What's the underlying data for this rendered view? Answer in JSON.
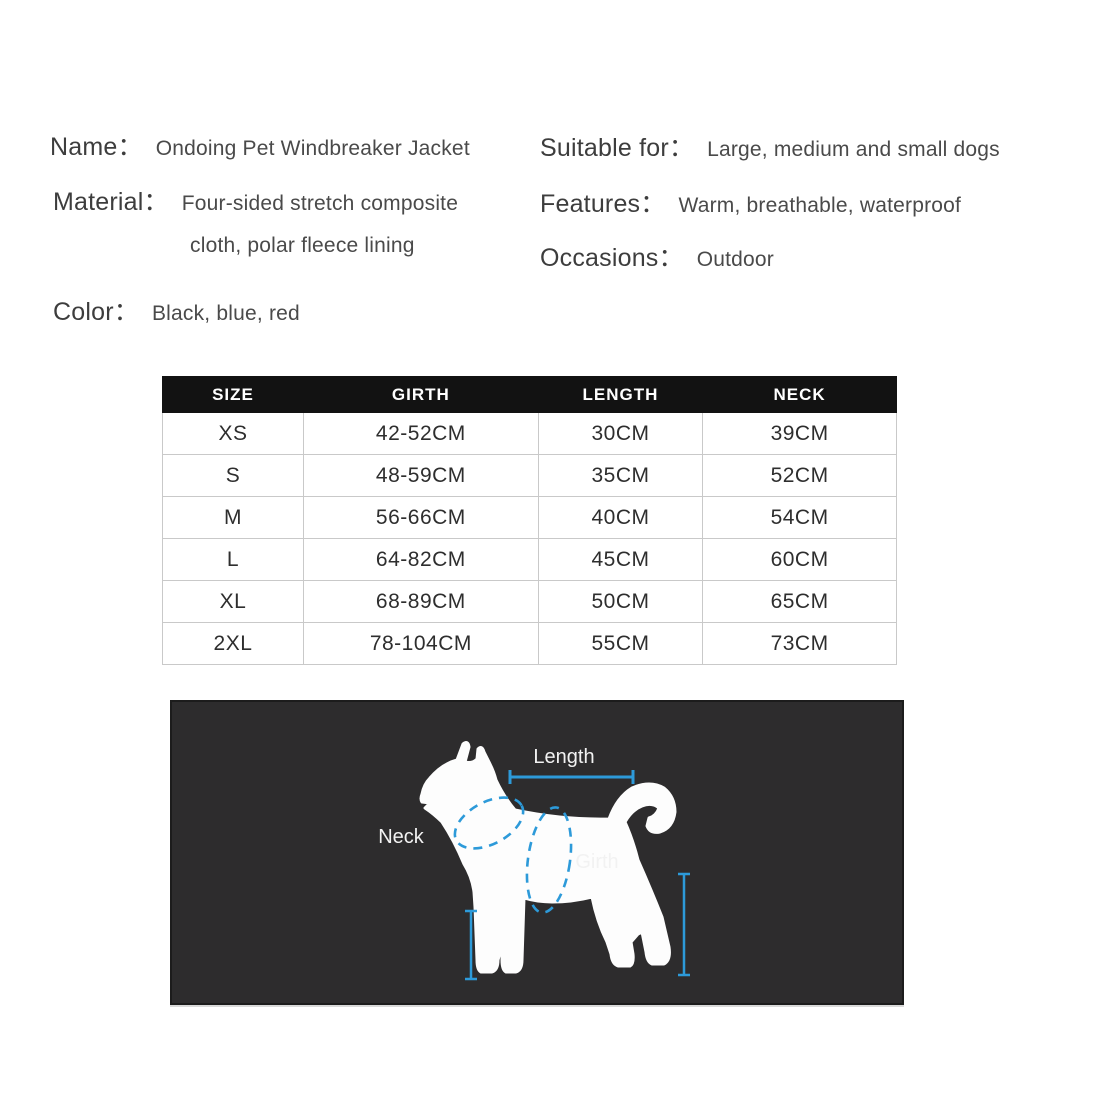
{
  "info": {
    "left": [
      {
        "label": "Name：",
        "value": "Ondoing Pet Windbreaker Jacket"
      },
      {
        "label": "Material：",
        "value": "Four-sided stretch composite",
        "value_line2": "cloth, polar fleece lining"
      },
      {
        "label": "Color：",
        "value": "Black, blue, red"
      }
    ],
    "right": [
      {
        "label": "Suitable for：",
        "value": "Large, medium and small dogs"
      },
      {
        "label": "Features：",
        "value": "Warm, breathable, waterproof"
      },
      {
        "label": "Occasions：",
        "value": "Outdoor"
      }
    ]
  },
  "size_table": {
    "headers": [
      "SIZE",
      "GIRTH",
      "LENGTH",
      "NECK"
    ],
    "rows": [
      [
        "XS",
        "42-52CM",
        "30CM",
        "39CM"
      ],
      [
        "S",
        "48-59CM",
        "35CM",
        "52CM"
      ],
      [
        "M",
        "56-66CM",
        "40CM",
        "54CM"
      ],
      [
        "L",
        "64-82CM",
        "45CM",
        "60CM"
      ],
      [
        "XL",
        "68-89CM",
        "50CM",
        "65CM"
      ],
      [
        "2XL",
        "78-104CM",
        "55CM",
        "73CM"
      ]
    ]
  },
  "diagram": {
    "length_label": "Length",
    "neck_label": "Neck",
    "girth_label": "Girth",
    "colors": {
      "panel_bg": "#2d2c2d",
      "measure_blue": "#2d9ad9",
      "dog_fill": "#fdfdfd",
      "table_header_bg": "#121212"
    }
  }
}
